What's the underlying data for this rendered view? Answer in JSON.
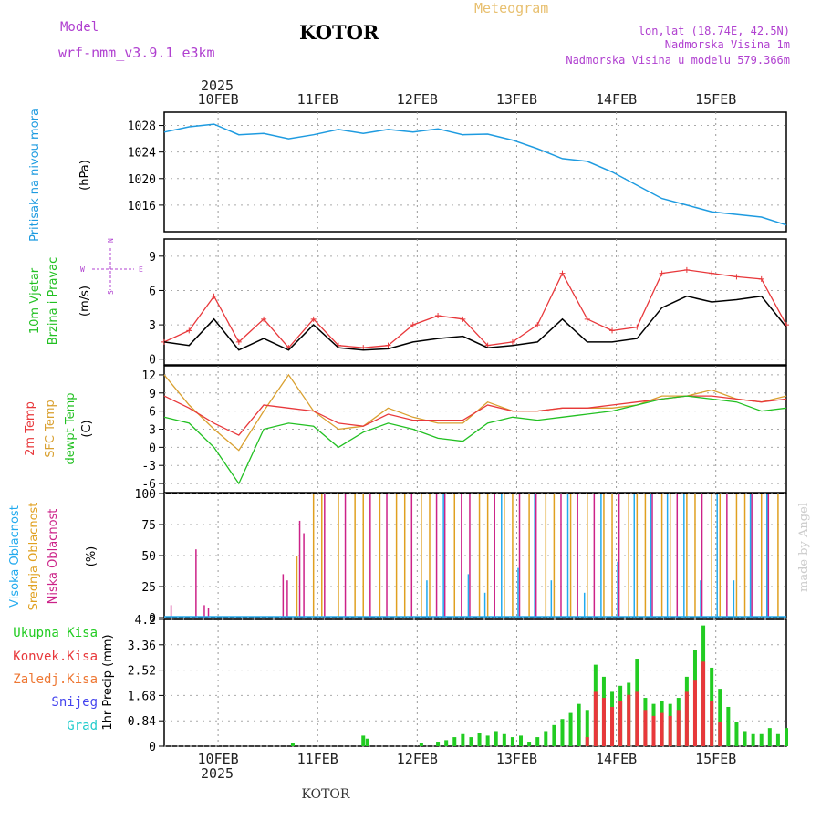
{
  "header": {
    "model_label": "Model",
    "model_name": "wrf-nmm_v3.9.1  e3km",
    "place": "KOTOR",
    "product": "Meteogram",
    "lonlat": "lon,lat (18.74E, 42.5N)",
    "altitude": "Nadmorska Visina 1m",
    "model_altitude": "Nadmorska Visina u modelu 579.366m",
    "year_top": "2025",
    "year_bottom": "2025",
    "footer_place": "KOTOR",
    "credit": "made by Angel"
  },
  "colors": {
    "pressure": "#1e9be0",
    "wind_speed": "#000000",
    "gust": "#e8383b",
    "temp2m": "#e8383b",
    "sfc_temp": "#d9a030",
    "dewpt": "#22c022",
    "high_cloud": "#22aaee",
    "mid_cloud": "#e0a020",
    "low_cloud": "#cc2288",
    "total_precip": "#22cc22",
    "conv_precip": "#e8383b",
    "frozen": "#ee7733",
    "snow": "#4444ee",
    "graupel": "#22cccc",
    "title_purple": "#b040d0",
    "meteogram_orange": "#e8c070"
  },
  "days": [
    "10FEB",
    "11FEB",
    "12FEB",
    "13FEB",
    "14FEB",
    "15FEB"
  ],
  "chart_data": [
    {
      "type": "line",
      "title": "Pritisak na nivou mora",
      "ylabel": "(hPa)",
      "ylim": [
        1012,
        1030
      ],
      "yticks": [
        1016,
        1020,
        1024,
        1028
      ],
      "x_hours": [
        0,
        6,
        12,
        18,
        24,
        30,
        36,
        42,
        48,
        54,
        60,
        66,
        72,
        78,
        84,
        90,
        96,
        102,
        108,
        114,
        120,
        126,
        132,
        138,
        144,
        150
      ],
      "series": [
        {
          "name": "pressure",
          "values": [
            1027.0,
            1027.8,
            1028.2,
            1026.6,
            1026.8,
            1026.0,
            1026.6,
            1027.4,
            1026.8,
            1027.4,
            1027.0,
            1027.5,
            1026.6,
            1026.7,
            1025.8,
            1024.5,
            1023.0,
            1022.6,
            1021.0,
            1019.0,
            1017.0,
            1016.0,
            1015.0,
            1014.6,
            1014.2,
            1013.0
          ]
        }
      ]
    },
    {
      "type": "line",
      "title": "10m Vjetar Brzina i Pravac",
      "ylabel": "(m/s)",
      "ylim": [
        -0.5,
        10.5
      ],
      "yticks": [
        0,
        3,
        6,
        9
      ],
      "compass": [
        "N",
        "S",
        "W",
        "E"
      ],
      "x_hours": [
        0,
        6,
        12,
        18,
        24,
        30,
        36,
        42,
        48,
        54,
        60,
        66,
        72,
        78,
        84,
        90,
        96,
        102,
        108,
        114,
        120,
        126,
        132,
        138,
        144,
        150
      ],
      "series": [
        {
          "name": "wind speed",
          "values": [
            1.5,
            1.2,
            3.5,
            0.8,
            1.8,
            0.8,
            3.0,
            1.0,
            0.8,
            0.9,
            1.5,
            1.8,
            2.0,
            1.0,
            1.2,
            1.5,
            3.5,
            1.5,
            1.5,
            1.8,
            4.5,
            5.5,
            5.0,
            5.2,
            5.5,
            2.8
          ]
        },
        {
          "name": "gust",
          "values": [
            1.5,
            2.5,
            5.5,
            1.5,
            3.5,
            1.0,
            3.5,
            1.2,
            1.0,
            1.2,
            3.0,
            3.8,
            3.5,
            1.2,
            1.5,
            3.0,
            7.5,
            3.5,
            2.5,
            2.8,
            7.5,
            7.8,
            7.5,
            7.2,
            7.0,
            3.0
          ]
        }
      ]
    },
    {
      "type": "line",
      "title": "2m Temp / SFC Temp / dewpt Temp",
      "ylabel": "(C)",
      "ylim": [
        -7.5,
        13.5
      ],
      "yticks": [
        -6,
        -3,
        0,
        3,
        6,
        9,
        12
      ],
      "x_hours": [
        0,
        6,
        12,
        18,
        24,
        30,
        36,
        42,
        48,
        54,
        60,
        66,
        72,
        78,
        84,
        90,
        96,
        102,
        108,
        114,
        120,
        126,
        132,
        138,
        144,
        150
      ],
      "series": [
        {
          "name": "2m Temp",
          "values": [
            8.5,
            6.5,
            4.0,
            2.0,
            7.0,
            6.5,
            6.0,
            4.0,
            3.5,
            5.5,
            4.5,
            4.5,
            4.5,
            7.0,
            6.0,
            6.0,
            6.5,
            6.5,
            7.0,
            7.5,
            8.0,
            8.5,
            8.5,
            8.0,
            7.5,
            8.0
          ]
        },
        {
          "name": "SFC Temp",
          "values": [
            12.0,
            7.0,
            3.0,
            -0.5,
            6.0,
            12.0,
            6.0,
            3.0,
            3.5,
            6.5,
            5.0,
            4.0,
            4.0,
            7.5,
            6.0,
            6.0,
            6.5,
            6.5,
            6.5,
            7.0,
            8.5,
            8.5,
            9.5,
            8.0,
            7.5,
            8.5
          ]
        },
        {
          "name": "dewpt Temp",
          "values": [
            5.0,
            4.0,
            0.0,
            -6.0,
            3.0,
            4.0,
            3.5,
            0.0,
            2.5,
            4.0,
            3.0,
            1.5,
            1.0,
            4.0,
            5.0,
            4.5,
            5.0,
            5.5,
            6.0,
            7.0,
            8.0,
            8.5,
            8.0,
            7.5,
            6.0,
            6.5
          ]
        }
      ]
    },
    {
      "type": "bar",
      "title": "Visoka / Srednja / Niska Oblacnost",
      "ylabel": "(%)",
      "ylim": [
        0,
        100
      ],
      "yticks": [
        0,
        25,
        50,
        75,
        100
      ],
      "series": [
        {
          "name": "Niska Oblacnost",
          "hours": [
            2,
            8,
            10,
            11,
            29,
            30,
            33,
            34,
            39,
            44,
            50,
            54,
            60,
            66,
            68,
            72,
            74,
            80,
            86,
            90,
            96,
            100,
            104,
            110,
            118,
            124,
            130,
            136,
            142,
            146
          ],
          "values": [
            10,
            55,
            10,
            8,
            35,
            30,
            78,
            68,
            100,
            100,
            100,
            100,
            100,
            100,
            100,
            100,
            100,
            100,
            100,
            100,
            100,
            100,
            100,
            100,
            100,
            100,
            100,
            100,
            100,
            100
          ]
        },
        {
          "name": "Srednja Oblacnost",
          "hours": [
            32,
            36,
            38,
            42,
            46,
            48,
            52,
            56,
            58,
            62,
            64,
            70,
            76,
            78,
            82,
            84,
            88,
            92,
            94,
            98,
            102,
            106,
            108,
            112,
            114,
            116,
            120,
            122,
            126,
            128,
            132,
            134,
            138,
            140,
            144,
            148
          ],
          "values": [
            50,
            100,
            100,
            100,
            100,
            100,
            100,
            100,
            100,
            100,
            100,
            100,
            100,
            100,
            100,
            100,
            100,
            100,
            100,
            100,
            100,
            100,
            100,
            100,
            100,
            100,
            100,
            100,
            100,
            100,
            100,
            100,
            100,
            100,
            100,
            100
          ]
        },
        {
          "name": "Visoka Oblacnost",
          "hours": [
            63,
            67,
            73,
            77,
            81,
            85,
            89,
            93,
            97,
            101,
            105,
            109,
            113,
            117,
            121,
            125,
            129,
            133,
            137,
            141,
            145
          ],
          "values": [
            30,
            100,
            35,
            20,
            100,
            40,
            100,
            30,
            100,
            20,
            100,
            45,
            100,
            100,
            100,
            100,
            30,
            100,
            30,
            100,
            100
          ]
        }
      ]
    },
    {
      "type": "bar",
      "title": "1hr Precip",
      "ylabel": "1hr Precip (mm)",
      "ylim": [
        0,
        4.2
      ],
      "yticks": [
        0,
        0.84,
        1.68,
        2.52,
        3.36,
        4.2
      ],
      "ytick_labels": [
        "0",
        "0.84",
        "1.68",
        "2.52",
        "3.36",
        "4.2"
      ],
      "legend": [
        "Ukupna Kisa",
        "Konvek.Kisa",
        "Zaledj.Kisa",
        "Snijeg",
        "Grad"
      ],
      "series": [
        {
          "name": "Ukupna Kisa",
          "hours": [
            31,
            48,
            49,
            62,
            66,
            68,
            70,
            72,
            74,
            76,
            78,
            80,
            82,
            84,
            86,
            88,
            90,
            92,
            94,
            96,
            98,
            100,
            102,
            104,
            106,
            108,
            110,
            112,
            114,
            116,
            118,
            120,
            122,
            124,
            126,
            128,
            130,
            132,
            134,
            136,
            138,
            140,
            142,
            144,
            146,
            148,
            150
          ],
          "values": [
            0.1,
            0.35,
            0.25,
            0.1,
            0.15,
            0.2,
            0.3,
            0.4,
            0.3,
            0.45,
            0.35,
            0.5,
            0.4,
            0.3,
            0.35,
            0.15,
            0.3,
            0.5,
            0.7,
            0.9,
            1.1,
            1.4,
            1.2,
            2.7,
            2.3,
            1.8,
            2.0,
            2.1,
            2.9,
            1.6,
            1.4,
            1.5,
            1.4,
            1.6,
            2.3,
            3.2,
            4.0,
            2.6,
            1.9,
            1.3,
            0.8,
            0.5,
            0.4,
            0.4,
            0.6,
            0.4,
            0.6
          ]
        },
        {
          "name": "Konvek.Kisa",
          "hours": [
            102,
            104,
            106,
            108,
            110,
            112,
            114,
            116,
            118,
            120,
            122,
            124,
            126,
            128,
            130,
            132,
            134
          ],
          "values": [
            0.3,
            1.8,
            1.6,
            1.3,
            1.5,
            1.7,
            1.8,
            1.2,
            1.0,
            1.1,
            1.0,
            1.2,
            1.8,
            2.2,
            2.8,
            1.5,
            0.8
          ]
        }
      ]
    }
  ]
}
